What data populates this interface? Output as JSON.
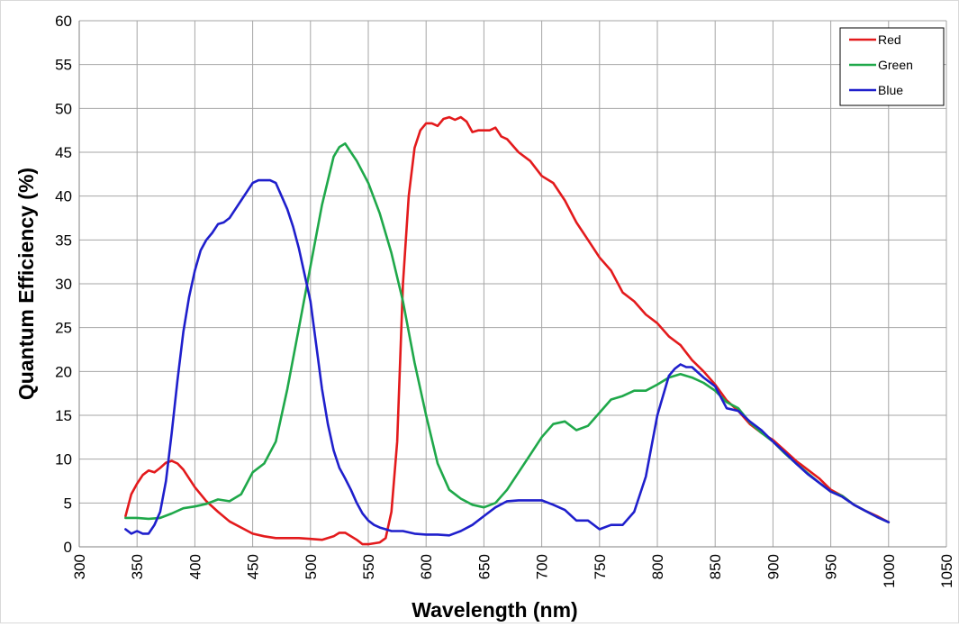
{
  "chart_data": {
    "type": "line",
    "title": "",
    "xlabel": "Wavelength (nm)",
    "ylabel": "Quantum Efficiency (%)",
    "xlim": [
      300,
      1050
    ],
    "ylim": [
      0,
      60
    ],
    "xticks": [
      300,
      350,
      400,
      450,
      500,
      550,
      600,
      650,
      700,
      750,
      800,
      850,
      900,
      950,
      1000,
      1050
    ],
    "yticks": [
      0,
      5,
      10,
      15,
      20,
      25,
      30,
      35,
      40,
      45,
      50,
      55,
      60
    ],
    "grid": true,
    "legend_position": "top-right",
    "series": [
      {
        "name": "Red",
        "color": "#e31a1c",
        "x": [
          340,
          345,
          350,
          355,
          360,
          365,
          370,
          375,
          380,
          385,
          390,
          395,
          400,
          410,
          420,
          430,
          440,
          450,
          460,
          470,
          480,
          490,
          500,
          510,
          520,
          525,
          530,
          540,
          545,
          550,
          560,
          565,
          570,
          575,
          580,
          585,
          590,
          595,
          600,
          605,
          610,
          615,
          620,
          625,
          630,
          635,
          640,
          645,
          650,
          655,
          660,
          665,
          670,
          680,
          690,
          700,
          710,
          720,
          730,
          740,
          750,
          760,
          770,
          780,
          790,
          800,
          810,
          820,
          830,
          840,
          850,
          860,
          870,
          880,
          890,
          900,
          910,
          920,
          930,
          940,
          950,
          960,
          970,
          980,
          990,
          1000
        ],
        "y": [
          3.5,
          6.0,
          7.2,
          8.2,
          8.7,
          8.5,
          9.0,
          9.6,
          9.8,
          9.5,
          8.8,
          7.8,
          6.8,
          5.2,
          4.0,
          2.9,
          2.2,
          1.5,
          1.2,
          1.0,
          1.0,
          1.0,
          0.9,
          0.8,
          1.2,
          1.6,
          1.6,
          0.8,
          0.3,
          0.3,
          0.5,
          1.0,
          4.0,
          12.0,
          30.0,
          40.0,
          45.5,
          47.5,
          48.3,
          48.3,
          48.0,
          48.8,
          49.0,
          48.7,
          49.0,
          48.5,
          47.3,
          47.5,
          47.5,
          47.5,
          47.8,
          46.8,
          46.5,
          45.0,
          44.0,
          42.3,
          41.5,
          39.5,
          37.0,
          35.0,
          33.0,
          31.5,
          29.0,
          28.0,
          26.5,
          25.5,
          24.0,
          23.0,
          21.3,
          20.0,
          18.5,
          16.7,
          15.5,
          14.0,
          13.0,
          12.2,
          11.0,
          9.8,
          8.8,
          7.8,
          6.5,
          5.8,
          4.8,
          4.1,
          3.5,
          2.8
        ]
      },
      {
        "name": "Green",
        "color": "#1fa84a",
        "x": [
          340,
          350,
          360,
          370,
          380,
          390,
          400,
          410,
          420,
          430,
          440,
          450,
          460,
          470,
          480,
          490,
          500,
          510,
          520,
          525,
          530,
          535,
          540,
          550,
          560,
          570,
          580,
          590,
          600,
          610,
          620,
          630,
          640,
          650,
          660,
          670,
          680,
          690,
          700,
          710,
          720,
          730,
          740,
          750,
          760,
          770,
          780,
          790,
          800,
          810,
          820,
          830,
          840,
          850,
          860,
          870,
          880,
          890,
          900,
          910,
          920,
          930,
          940,
          950,
          960,
          970,
          980,
          990,
          1000
        ],
        "y": [
          3.3,
          3.3,
          3.2,
          3.3,
          3.8,
          4.4,
          4.6,
          4.9,
          5.4,
          5.2,
          6.0,
          8.5,
          9.5,
          12.0,
          18.0,
          25.0,
          32.0,
          39.0,
          44.5,
          45.6,
          46.0,
          45.0,
          44.0,
          41.5,
          38.0,
          33.5,
          28.0,
          21.0,
          15.0,
          9.5,
          6.5,
          5.5,
          4.8,
          4.5,
          5.0,
          6.5,
          8.5,
          10.5,
          12.5,
          14.0,
          14.3,
          13.3,
          13.8,
          15.3,
          16.8,
          17.2,
          17.8,
          17.8,
          18.5,
          19.3,
          19.7,
          19.3,
          18.7,
          17.8,
          16.5,
          15.8,
          14.2,
          13.0,
          12.0,
          10.7,
          9.5,
          8.4,
          7.3,
          6.3,
          5.8,
          4.8,
          4.1,
          3.4,
          2.8
        ]
      },
      {
        "name": "Blue",
        "color": "#1f1fcc",
        "x": [
          340,
          345,
          350,
          355,
          360,
          365,
          370,
          375,
          380,
          385,
          390,
          395,
          400,
          405,
          410,
          415,
          420,
          425,
          430,
          435,
          440,
          445,
          450,
          455,
          460,
          465,
          470,
          475,
          480,
          485,
          490,
          495,
          500,
          505,
          510,
          515,
          520,
          525,
          530,
          535,
          540,
          545,
          550,
          555,
          560,
          565,
          570,
          580,
          590,
          600,
          610,
          620,
          630,
          640,
          650,
          660,
          670,
          680,
          690,
          700,
          710,
          720,
          730,
          740,
          750,
          760,
          770,
          780,
          790,
          800,
          810,
          815,
          820,
          825,
          830,
          840,
          850,
          860,
          870,
          880,
          890,
          900,
          910,
          920,
          930,
          940,
          950,
          960,
          970,
          980,
          990,
          1000
        ],
        "y": [
          2.0,
          1.5,
          1.8,
          1.5,
          1.5,
          2.5,
          4.0,
          7.5,
          13.0,
          19.0,
          24.5,
          28.5,
          31.5,
          33.8,
          35.0,
          35.8,
          36.8,
          37.0,
          37.5,
          38.5,
          39.5,
          40.5,
          41.5,
          41.8,
          41.8,
          41.8,
          41.5,
          40.0,
          38.5,
          36.5,
          34.0,
          31.0,
          28.0,
          23.0,
          18.0,
          14.0,
          11.0,
          9.0,
          7.8,
          6.5,
          5.0,
          3.8,
          3.0,
          2.5,
          2.2,
          2.0,
          1.8,
          1.8,
          1.5,
          1.4,
          1.4,
          1.3,
          1.8,
          2.5,
          3.5,
          4.5,
          5.2,
          5.3,
          5.3,
          5.3,
          4.8,
          4.2,
          3.0,
          3.0,
          2.0,
          2.5,
          2.5,
          4.0,
          8.0,
          15.0,
          19.5,
          20.3,
          20.8,
          20.5,
          20.5,
          19.3,
          18.3,
          15.8,
          15.5,
          14.3,
          13.3,
          12.0,
          10.8,
          9.5,
          8.3,
          7.3,
          6.3,
          5.7,
          4.8,
          4.1,
          3.4,
          2.8
        ]
      }
    ]
  }
}
